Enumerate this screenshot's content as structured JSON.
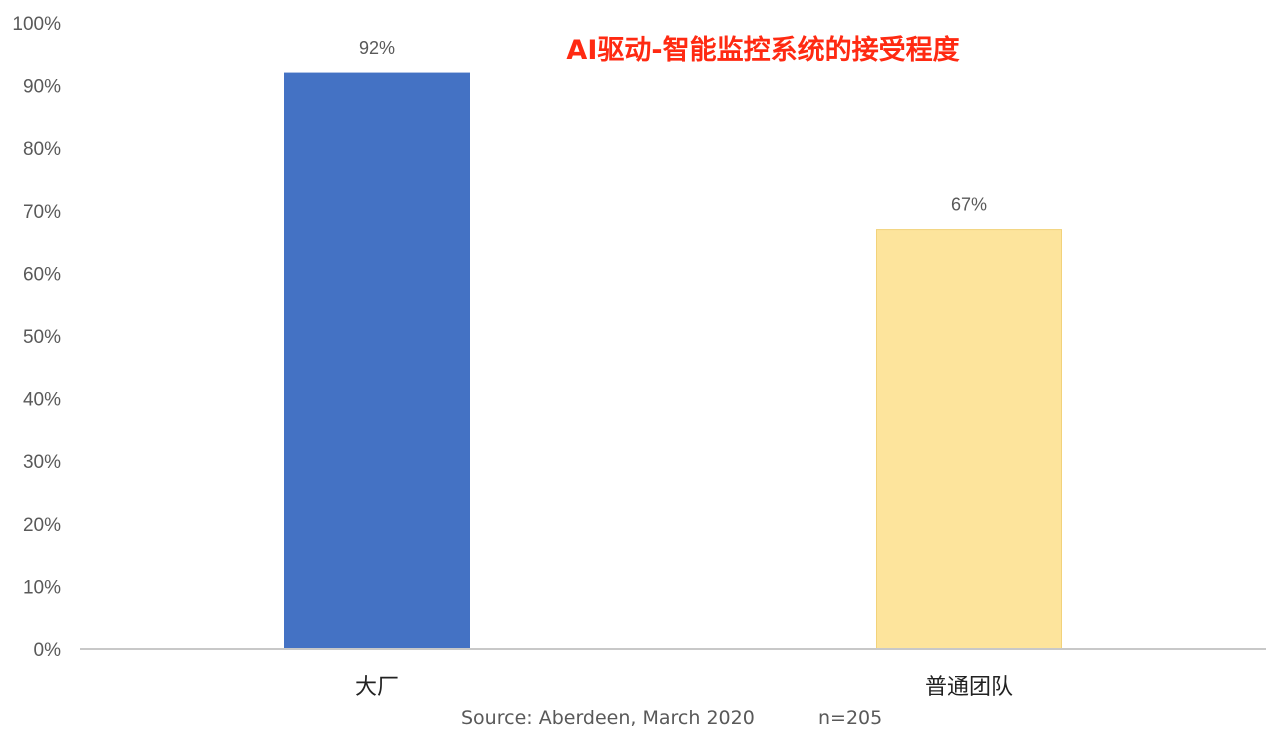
{
  "chart_data": {
    "type": "bar",
    "title": "AI驱动-智能监控系统的接受程度",
    "categories": [
      "大厂",
      "普通团队"
    ],
    "values": [
      92,
      67
    ],
    "value_labels": [
      "92%",
      "67%"
    ],
    "ylim": [
      0,
      100
    ],
    "yticks": [
      "0%",
      "10%",
      "20%",
      "30%",
      "40%",
      "50%",
      "60%",
      "70%",
      "80%",
      "90%",
      "100%"
    ],
    "grid": false,
    "bar_colors": [
      "#4472c4",
      "#fde49c"
    ],
    "bar_border_colors": [
      "#4472c4",
      "#f2d27a"
    ],
    "source": "Source: Aberdeen, March 2020",
    "sample": "n=205",
    "xlabel": "",
    "ylabel": ""
  }
}
